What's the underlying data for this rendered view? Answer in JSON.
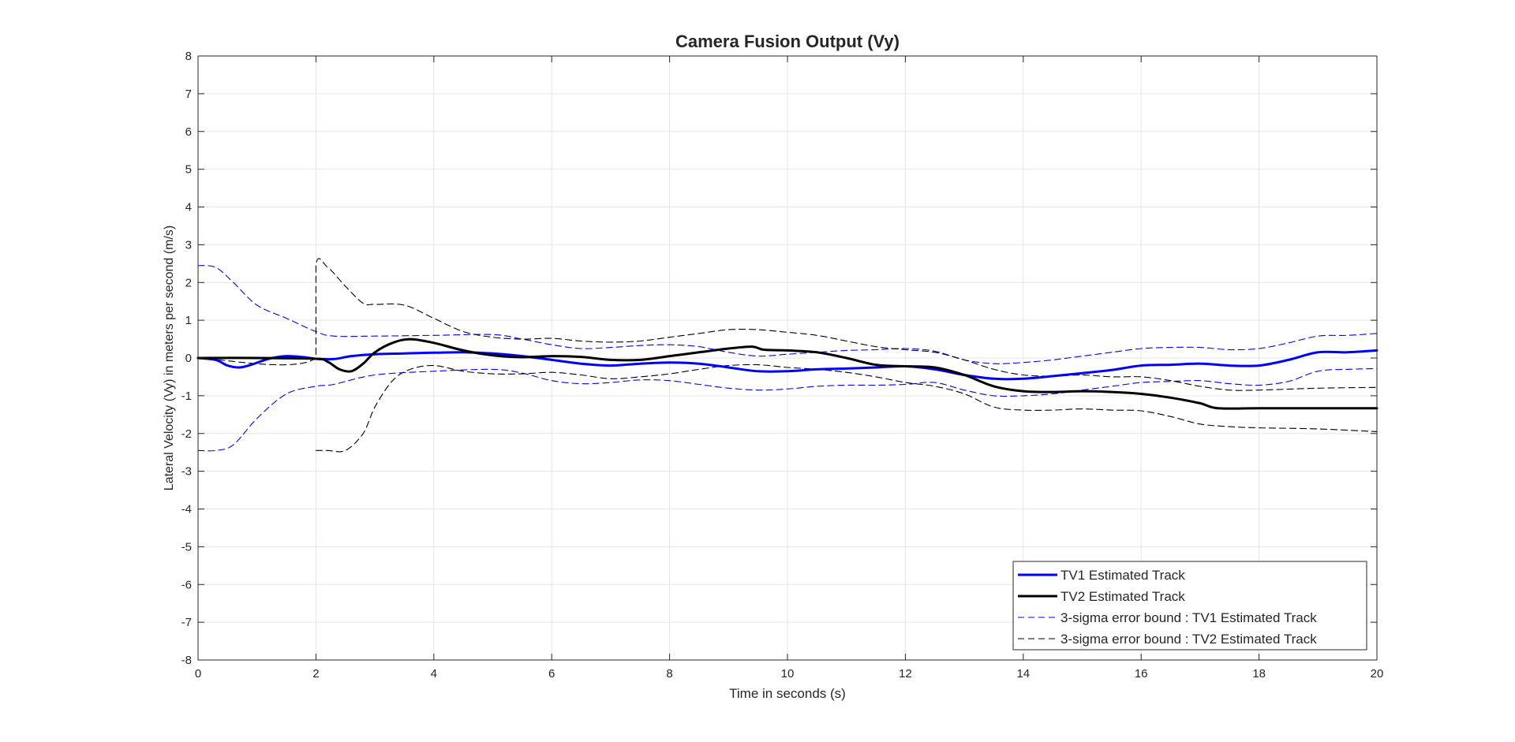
{
  "chart_data": {
    "type": "line",
    "title": "Camera Fusion Output (Vy)",
    "xlabel": "Time in seconds (s)",
    "ylabel": "Lateral Velocity (Vy) in meters per second (m/s)",
    "xlim": [
      0,
      20
    ],
    "ylim": [
      -8,
      8
    ],
    "xticks": [
      0,
      2,
      4,
      6,
      8,
      10,
      12,
      14,
      16,
      18,
      20
    ],
    "yticks": [
      -8,
      -7,
      -6,
      -5,
      -4,
      -3,
      -2,
      -1,
      0,
      1,
      2,
      3,
      4,
      5,
      6,
      7,
      8
    ],
    "grid": true,
    "legend_position": "bottom-right",
    "series": [
      {
        "name": "TV1 Estimated Track",
        "color": "#0000ff",
        "style": "solid",
        "x": [
          0,
          0.3,
          0.5,
          0.7,
          0.9,
          1.2,
          1.5,
          1.8,
          2.0,
          2.3,
          2.6,
          3.0,
          3.5,
          4.0,
          4.5,
          5.0,
          5.5,
          6.0,
          6.5,
          7.0,
          7.5,
          8.0,
          8.5,
          9.0,
          9.5,
          10.0,
          10.5,
          11.0,
          11.5,
          12.0,
          12.5,
          13.0,
          13.5,
          14.0,
          14.5,
          15.0,
          15.5,
          16.0,
          16.5,
          17.0,
          17.5,
          18.0,
          18.5,
          19.0,
          19.5,
          20.0
        ],
        "values": [
          0,
          -0.05,
          -0.2,
          -0.25,
          -0.18,
          -0.02,
          0.05,
          0.02,
          -0.02,
          -0.03,
          0.05,
          0.1,
          0.12,
          0.14,
          0.15,
          0.12,
          0.05,
          -0.05,
          -0.15,
          -0.2,
          -0.15,
          -0.12,
          -0.15,
          -0.25,
          -0.35,
          -0.35,
          -0.3,
          -0.28,
          -0.25,
          -0.22,
          -0.3,
          -0.45,
          -0.55,
          -0.55,
          -0.48,
          -0.4,
          -0.32,
          -0.2,
          -0.18,
          -0.15,
          -0.2,
          -0.2,
          -0.05,
          0.15,
          0.15,
          0.2
        ]
      },
      {
        "name": "TV2 Estimated Track",
        "color": "#000000",
        "style": "solid",
        "x": [
          0,
          1.0,
          2.0,
          2.2,
          2.4,
          2.6,
          2.8,
          3.0,
          3.3,
          3.6,
          4.0,
          4.5,
          5.0,
          5.5,
          6.0,
          6.5,
          7.0,
          7.5,
          8.0,
          8.5,
          9.0,
          9.4,
          9.6,
          10.0,
          10.5,
          11.0,
          11.5,
          12.0,
          12.5,
          13.0,
          13.5,
          14.0,
          14.5,
          15.0,
          15.5,
          16.0,
          16.5,
          17.0,
          17.3,
          18.0,
          19.0,
          20.0
        ],
        "values": [
          0,
          0,
          -0.02,
          -0.1,
          -0.3,
          -0.35,
          -0.15,
          0.15,
          0.4,
          0.5,
          0.4,
          0.2,
          0.07,
          0.02,
          0.05,
          0.03,
          -0.05,
          -0.05,
          0.05,
          0.15,
          0.25,
          0.3,
          0.22,
          0.2,
          0.15,
          0.0,
          -0.18,
          -0.22,
          -0.25,
          -0.45,
          -0.75,
          -0.88,
          -0.9,
          -0.88,
          -0.9,
          -0.95,
          -1.05,
          -1.2,
          -1.33,
          -1.33,
          -1.33,
          -1.33
        ]
      },
      {
        "name": "3-sigma error bound : TV1 Estimated Track",
        "color": "#0000ff",
        "style": "dashed",
        "segments": [
          {
            "x": [
              0,
              0.3,
              0.6,
              1.0,
              1.5,
              2.0,
              2.3,
              3.0,
              4.0,
              5.0,
              5.5,
              6.0,
              6.5,
              7.0,
              7.5,
              8.0,
              8.5,
              9.0,
              9.5,
              10.0,
              10.5,
              11.0,
              11.5,
              12.0,
              12.5,
              13.0,
              13.5,
              14.0,
              14.5,
              15.0,
              15.5,
              16.0,
              16.5,
              17.0,
              17.5,
              18.0,
              18.5,
              19.0,
              19.5,
              20.0
            ],
            "values": [
              2.45,
              2.4,
              2.0,
              1.4,
              1.05,
              0.7,
              0.58,
              0.58,
              0.6,
              0.62,
              0.5,
              0.35,
              0.25,
              0.28,
              0.33,
              0.35,
              0.3,
              0.15,
              0.05,
              0.1,
              0.15,
              0.2,
              0.22,
              0.25,
              0.18,
              -0.05,
              -0.15,
              -0.12,
              -0.05,
              0.05,
              0.15,
              0.25,
              0.28,
              0.28,
              0.22,
              0.25,
              0.4,
              0.58,
              0.6,
              0.65
            ]
          },
          {
            "x": [
              0,
              0.3,
              0.6,
              1.0,
              1.5,
              2.0,
              2.3,
              3.0,
              4.0,
              5.0,
              5.5,
              6.0,
              6.5,
              7.0,
              7.5,
              8.0,
              8.5,
              9.0,
              9.5,
              10.0,
              10.5,
              11.0,
              11.5,
              12.0,
              12.5,
              13.0,
              13.5,
              14.0,
              14.5,
              15.0,
              15.5,
              16.0,
              16.5,
              17.0,
              17.5,
              18.0,
              18.5,
              19.0,
              19.5,
              20.0
            ],
            "values": [
              -2.45,
              -2.45,
              -2.3,
              -1.6,
              -0.95,
              -0.75,
              -0.7,
              -0.45,
              -0.35,
              -0.3,
              -0.4,
              -0.6,
              -0.68,
              -0.65,
              -0.58,
              -0.6,
              -0.7,
              -0.8,
              -0.85,
              -0.82,
              -0.75,
              -0.72,
              -0.72,
              -0.7,
              -0.65,
              -0.85,
              -1.0,
              -1.0,
              -0.95,
              -0.85,
              -0.75,
              -0.65,
              -0.62,
              -0.6,
              -0.68,
              -0.72,
              -0.62,
              -0.35,
              -0.3,
              -0.28
            ]
          }
        ]
      },
      {
        "name": "3-sigma error bound : TV2 Estimated Track",
        "color": "#000000",
        "style": "dashed",
        "segments": [
          {
            "x": [
              0,
              2.0,
              2.0,
              2.2,
              2.5,
              2.8,
              3.0,
              3.5,
              4.0,
              4.5,
              5.0,
              5.5,
              6.0,
              6.5,
              7.0,
              7.5,
              8.0,
              8.5,
              9.0,
              9.5,
              10.0,
              10.5,
              11.0,
              11.5,
              12.0,
              12.5,
              13.0,
              13.5,
              14.0,
              14.5,
              15.0,
              15.5,
              16.0,
              16.5,
              17.0,
              17.5,
              18.0,
              19.0,
              20.0
            ],
            "values": [
              0,
              0,
              2.45,
              2.4,
              1.9,
              1.45,
              1.42,
              1.4,
              1.05,
              0.7,
              0.55,
              0.5,
              0.52,
              0.45,
              0.42,
              0.45,
              0.55,
              0.65,
              0.75,
              0.75,
              0.68,
              0.6,
              0.45,
              0.3,
              0.22,
              0.15,
              -0.05,
              -0.3,
              -0.45,
              -0.48,
              -0.45,
              -0.5,
              -0.5,
              -0.6,
              -0.75,
              -0.85,
              -0.85,
              -0.8,
              -0.78
            ]
          },
          {
            "x": [
              2.0,
              2.2,
              2.5,
              2.8,
              3.0,
              3.3,
              3.6,
              4.0,
              4.5,
              5.0,
              5.5,
              6.0,
              6.5,
              7.0,
              7.5,
              8.0,
              8.5,
              9.0,
              9.5,
              10.0,
              10.5,
              11.0,
              11.5,
              12.0,
              12.5,
              13.0,
              13.5,
              14.0,
              14.5,
              15.0,
              15.5,
              16.0,
              16.5,
              17.0,
              17.5,
              18.0,
              19.0,
              20.0
            ],
            "values": [
              -2.45,
              -2.45,
              -2.45,
              -2.0,
              -1.3,
              -0.6,
              -0.3,
              -0.2,
              -0.35,
              -0.42,
              -0.42,
              -0.38,
              -0.45,
              -0.55,
              -0.5,
              -0.42,
              -0.3,
              -0.2,
              -0.18,
              -0.25,
              -0.3,
              -0.38,
              -0.5,
              -0.65,
              -0.75,
              -0.95,
              -1.3,
              -1.38,
              -1.38,
              -1.35,
              -1.38,
              -1.4,
              -1.55,
              -1.75,
              -1.82,
              -1.85,
              -1.88,
              -1.95
            ]
          }
        ]
      }
    ]
  }
}
